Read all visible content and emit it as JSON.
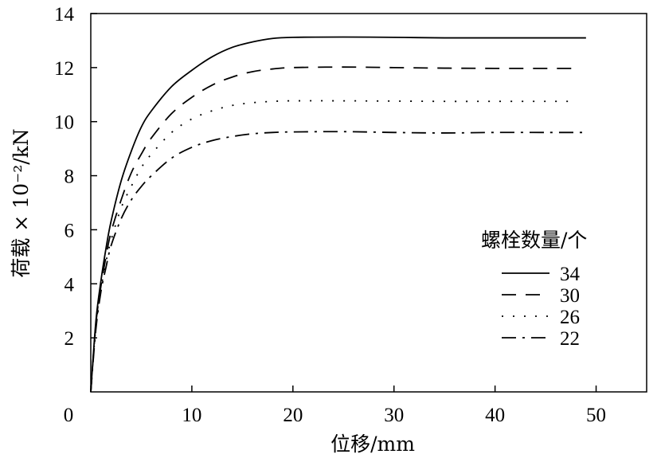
{
  "chart_data": {
    "type": "line",
    "title": "",
    "xlabel": "位移/mm",
    "ylabel": "荷载 × 10⁻²/kN",
    "xlim": [
      0,
      55
    ],
    "ylim": [
      0,
      14
    ],
    "xticks": [
      0,
      10,
      20,
      30,
      40,
      50
    ],
    "yticks": [
      2,
      4,
      6,
      8,
      10,
      12,
      14
    ],
    "x_tick_labels": [
      "0",
      "10",
      "20",
      "30",
      "40",
      "50"
    ],
    "y_tick_labels": [
      "2",
      "4",
      "6",
      "8",
      "10",
      "12",
      "14"
    ],
    "grid": false,
    "legend": {
      "title": "螺栓数量/个",
      "position": "right",
      "entries": [
        {
          "label": "34",
          "style": "solid"
        },
        {
          "label": "30",
          "style": "dashed"
        },
        {
          "label": "26",
          "style": "dotted"
        },
        {
          "label": "22",
          "style": "dash-dot"
        }
      ]
    },
    "series": [
      {
        "name": "34",
        "style": "solid",
        "x": [
          0,
          0.5,
          1,
          1.5,
          2,
          3,
          4,
          5,
          6,
          8,
          10,
          12,
          14,
          16,
          18,
          20,
          25,
          30,
          35,
          40,
          45,
          49
        ],
        "y": [
          0,
          2.6,
          4.1,
          5.3,
          6.3,
          7.8,
          8.9,
          9.8,
          10.4,
          11.3,
          11.9,
          12.4,
          12.75,
          12.95,
          13.08,
          13.12,
          13.13,
          13.12,
          13.1,
          13.1,
          13.1,
          13.1
        ]
      },
      {
        "name": "30",
        "style": "dashed",
        "x": [
          0,
          0.5,
          1,
          1.5,
          2,
          3,
          4,
          5,
          6,
          8,
          10,
          12,
          14,
          16,
          18,
          20,
          25,
          30,
          35,
          40,
          45,
          48
        ],
        "y": [
          0,
          2.5,
          3.9,
          5.0,
          5.9,
          7.1,
          8.1,
          8.8,
          9.4,
          10.3,
          10.9,
          11.35,
          11.65,
          11.85,
          11.95,
          12.0,
          12.02,
          12.0,
          11.98,
          11.97,
          11.97,
          11.97
        ]
      },
      {
        "name": "26",
        "style": "dotted",
        "x": [
          0,
          0.5,
          1,
          1.5,
          2,
          3,
          4,
          5,
          6,
          8,
          10,
          12,
          14,
          16,
          18,
          20,
          25,
          30,
          35,
          40,
          45,
          48
        ],
        "y": [
          0,
          2.4,
          3.8,
          4.8,
          5.6,
          6.8,
          7.6,
          8.3,
          8.8,
          9.6,
          10.1,
          10.4,
          10.6,
          10.7,
          10.75,
          10.77,
          10.77,
          10.76,
          10.75,
          10.75,
          10.75,
          10.75
        ]
      },
      {
        "name": "22",
        "style": "dash-dot",
        "x": [
          0,
          0.5,
          1,
          1.5,
          2,
          3,
          4,
          5,
          6,
          8,
          10,
          12,
          14,
          16,
          18,
          20,
          25,
          30,
          35,
          40,
          45,
          49
        ],
        "y": [
          0,
          2.3,
          3.7,
          4.6,
          5.4,
          6.4,
          7.1,
          7.6,
          8.0,
          8.65,
          9.05,
          9.3,
          9.45,
          9.55,
          9.6,
          9.62,
          9.63,
          9.6,
          9.58,
          9.6,
          9.6,
          9.6
        ]
      }
    ]
  },
  "colors": {
    "line": "#000000",
    "background": "#ffffff"
  }
}
